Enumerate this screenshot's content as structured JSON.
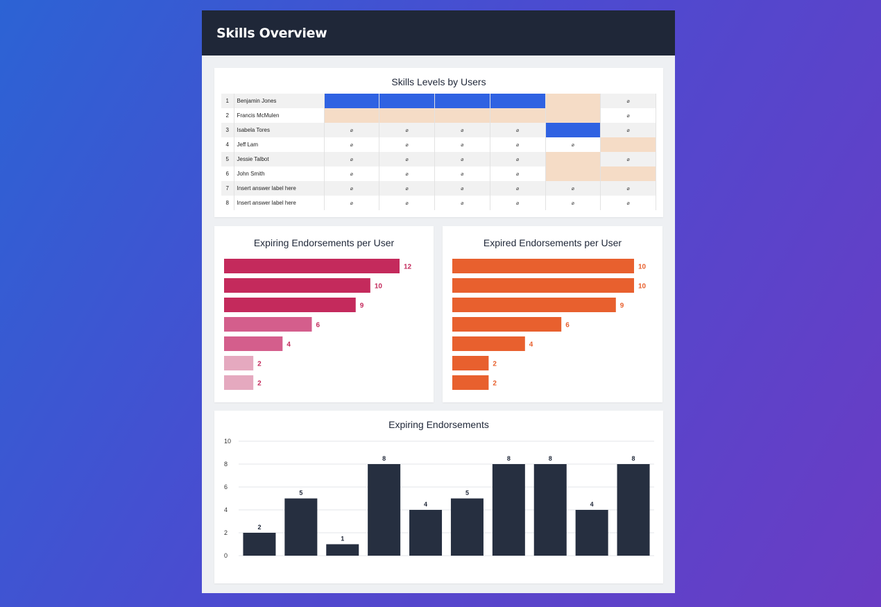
{
  "page": {
    "title": "Skills Overview"
  },
  "skills_table": {
    "title": "Skills Levels by Users",
    "rows": [
      {
        "index": "1",
        "name": "Benjamin Jones",
        "cells": [
          "blue",
          "blue",
          "blue",
          "blue",
          "peach",
          "o"
        ]
      },
      {
        "index": "2",
        "name": "Francis McMulen",
        "cells": [
          "peach",
          "peach",
          "peach",
          "peach",
          "peach",
          "o"
        ]
      },
      {
        "index": "3",
        "name": "Isabela Tores",
        "cells": [
          "o",
          "o",
          "o",
          "o",
          "blue",
          "o"
        ]
      },
      {
        "index": "4",
        "name": "Jeff Lam",
        "cells": [
          "o",
          "o",
          "o",
          "o",
          "o",
          "peach"
        ]
      },
      {
        "index": "5",
        "name": "Jessie Talbot",
        "cells": [
          "o",
          "o",
          "o",
          "o",
          "peach",
          "o"
        ]
      },
      {
        "index": "6",
        "name": "John Smith",
        "cells": [
          "o",
          "o",
          "o",
          "o",
          "peach",
          "peach"
        ]
      },
      {
        "index": "7",
        "name": "Insert answer label here",
        "cells": [
          "o",
          "o",
          "o",
          "o",
          "o",
          "o"
        ]
      },
      {
        "index": "8",
        "name": "Insert answer label here",
        "cells": [
          "o",
          "o",
          "o",
          "o",
          "o",
          "o"
        ]
      }
    ],
    "empty_symbol": "⌀",
    "colors": {
      "blue": "#2f62e2",
      "peach": "#f5dcc6"
    }
  },
  "chart_data": [
    {
      "type": "bar",
      "orientation": "horizontal",
      "title": "Expiring Endorsements per User",
      "values": [
        12,
        10,
        9,
        6,
        4,
        2,
        2
      ],
      "colors": [
        "#c42a5c",
        "#c42a5c",
        "#c42a5c",
        "#d45e8c",
        "#d45e8c",
        "#e5a9bf",
        "#e5a9bf"
      ],
      "label_color": "#c42a5c",
      "xlim": [
        0,
        12
      ]
    },
    {
      "type": "bar",
      "orientation": "horizontal",
      "title": "Expired Endorsements per User",
      "values": [
        10,
        10,
        9,
        6,
        4,
        2,
        2
      ],
      "colors": [
        "#e8602e",
        "#e8602e",
        "#e8602e",
        "#e8602e",
        "#e8602e",
        "#e8602e",
        "#e8602e"
      ],
      "label_color": "#e8602e",
      "xlim": [
        0,
        10
      ]
    },
    {
      "type": "bar",
      "title": "Expiring Endorsements",
      "values": [
        2,
        5,
        1,
        8,
        4,
        5,
        8,
        8,
        4,
        8
      ],
      "ylim": [
        0,
        10
      ],
      "yticks": [
        0,
        2,
        4,
        6,
        8,
        10
      ],
      "color": "#262f40",
      "grid": true
    }
  ]
}
